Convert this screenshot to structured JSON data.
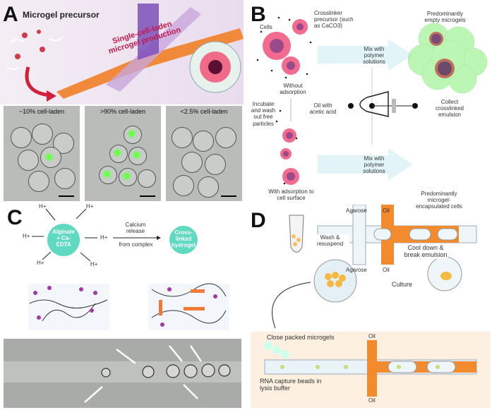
{
  "panels": {
    "A": {
      "label": "A",
      "title": "Microgel precursor",
      "channel_label_line1": "Single-cell-laden",
      "channel_label_line2": "microgel production",
      "micrographs": [
        "~10% cell-laden",
        ">90% cell-laden",
        "<2.5% cell-laden"
      ]
    },
    "B": {
      "label": "B",
      "cells": "Cells",
      "crosslinker": "Crosslinker precursor (such as CaCO3)",
      "without": "Without adsorption",
      "incubate": "Incubate and wash out free particles",
      "with": "With adsorption to cell surface",
      "mix_top": "Mix with polymer solutions",
      "mix_bottom": "Mix with polymer solutions",
      "oil": "Oil with acetic acid",
      "collect": "Collect crosslinked emulsion",
      "empty": "Predominantly empty microgels",
      "encapsulated": "Predominantly microgel-encapsulated cells"
    },
    "C": {
      "label": "C",
      "proton": "H+",
      "sphere1": "Alginate + Ca-EDTA",
      "sphere2": "Cross-linked hydrogel",
      "arrow_top": "Calcium release",
      "arrow_bottom": "from complex"
    },
    "D": {
      "label": "D",
      "wash": "Wash & resuspend",
      "agarose_top": "Agarose",
      "agarose_bottom": "Agarose",
      "oil_top": "Oil",
      "oil_bottom": "Oil",
      "cool": "Cool down & break emulsion",
      "culture": "Culture",
      "close_packed": "Close packed microgels",
      "rna": "RNA capture beads in lysis buffer",
      "oil2_top": "Oil",
      "oil2_bottom": "Oil"
    }
  },
  "colors": {
    "orange": "#f28a2e",
    "green": "#7be07b",
    "pink": "#f27a9a",
    "teal": "#5fd9c0"
  }
}
